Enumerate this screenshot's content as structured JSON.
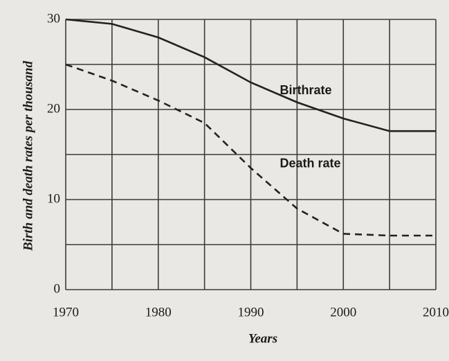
{
  "chart_data": {
    "type": "line",
    "xlabel": "Years",
    "ylabel": "Birth and death rates per thousand",
    "x": [
      1970,
      1975,
      1980,
      1985,
      1990,
      1995,
      2000,
      2005,
      2010
    ],
    "series": [
      {
        "name": "Birthrate",
        "color": "#222222",
        "dash": false,
        "values": [
          30,
          29.5,
          28,
          25.8,
          23,
          20.8,
          19,
          17.6,
          17.6
        ]
      },
      {
        "name": "Death rate",
        "color": "#222222",
        "dash": true,
        "values": [
          25,
          23.2,
          21,
          18.5,
          13.5,
          9,
          6.2,
          6,
          6
        ]
      }
    ],
    "xlim": [
      1970,
      2010
    ],
    "xticks": [
      1970,
      1980,
      1990,
      2000,
      2010
    ],
    "minor_xticks": [
      1975,
      1985,
      1995,
      2005
    ],
    "ylim": [
      0,
      30
    ],
    "yticks": [
      0,
      10,
      20,
      30
    ],
    "minor_yticks": [
      5,
      15,
      25
    ],
    "grid": true
  }
}
